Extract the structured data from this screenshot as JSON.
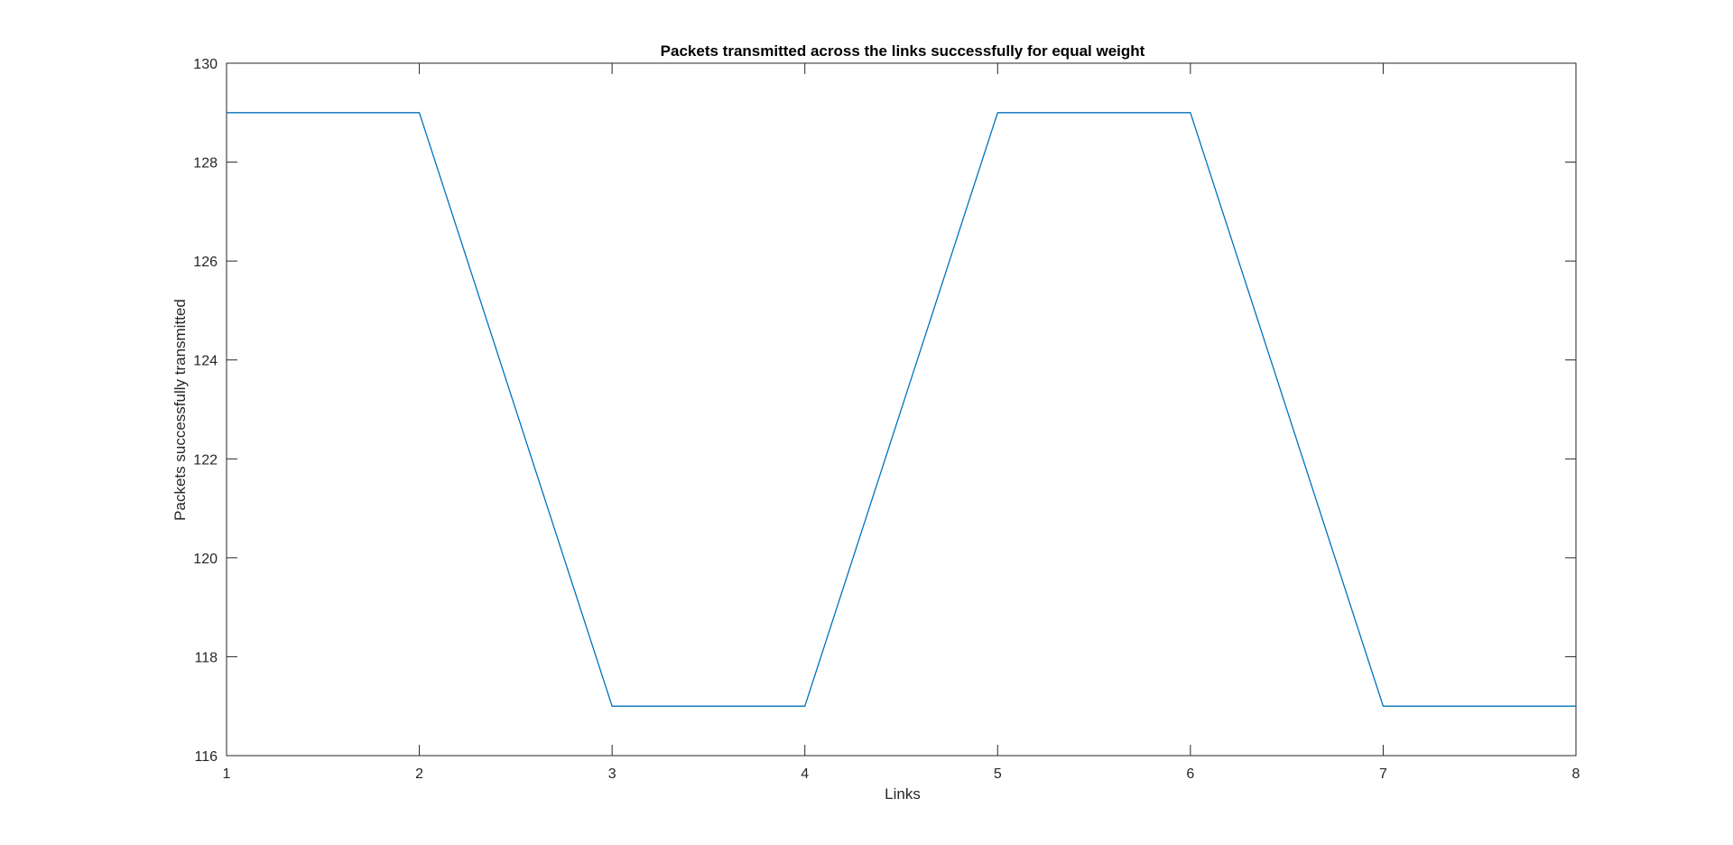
{
  "chart_data": {
    "type": "line",
    "title": "Packets transmitted across the links successfully for equal weight",
    "xlabel": "Links",
    "ylabel": "Packets successfully transmitted",
    "xlim": [
      1,
      8
    ],
    "ylim": [
      116,
      130
    ],
    "xticks": [
      1,
      2,
      3,
      4,
      5,
      6,
      7,
      8
    ],
    "yticks": [
      116,
      118,
      120,
      122,
      124,
      126,
      128,
      130
    ],
    "grid": false,
    "legend": "none",
    "series": [
      {
        "x": [
          1,
          2,
          3,
          4,
          5,
          6,
          7,
          8
        ],
        "values": [
          129,
          129,
          117,
          117,
          129,
          129,
          117,
          117
        ],
        "color": "#0072BD"
      }
    ]
  }
}
